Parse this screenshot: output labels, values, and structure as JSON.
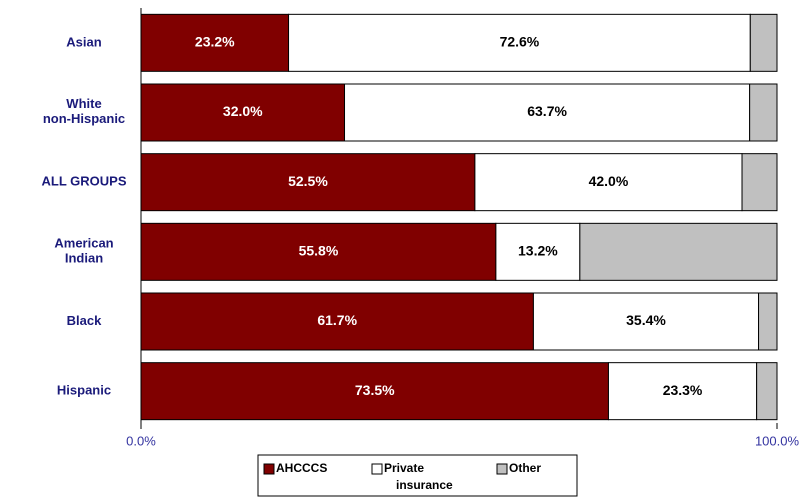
{
  "chart_data": {
    "type": "stacked_barh",
    "categories": [
      "Asian",
      "White\nnon-Hispanic",
      "ALL GROUPS",
      "American\nIndian",
      "Black",
      "Hispanic"
    ],
    "series": [
      {
        "name": "AHCCCS",
        "color": "#800000",
        "label_color": "#ffffff",
        "values": [
          23.2,
          32.0,
          52.5,
          55.8,
          61.7,
          73.5
        ],
        "value_labels": [
          "23.2%",
          "32.0%",
          "52.5%",
          "55.8%",
          "61.7%",
          "73.5%"
        ]
      },
      {
        "name": "Private insurance",
        "color": "#ffffff",
        "label_color": "#000000",
        "values": [
          72.6,
          63.7,
          42.0,
          13.2,
          35.4,
          23.3
        ],
        "value_labels": [
          "72.6%",
          "63.7%",
          "42.0%",
          "13.2%",
          "35.4%",
          "23.3%"
        ]
      },
      {
        "name": "Other",
        "color": "#c0c0c0",
        "values": [
          4.2,
          4.3,
          5.5,
          31.0,
          2.9,
          3.2
        ]
      }
    ],
    "xlim": [
      0,
      100
    ],
    "xticks": [
      {
        "value": 0,
        "label": "0.0%"
      },
      {
        "value": 100,
        "label": "100.0%"
      }
    ],
    "legend": "bottom"
  }
}
